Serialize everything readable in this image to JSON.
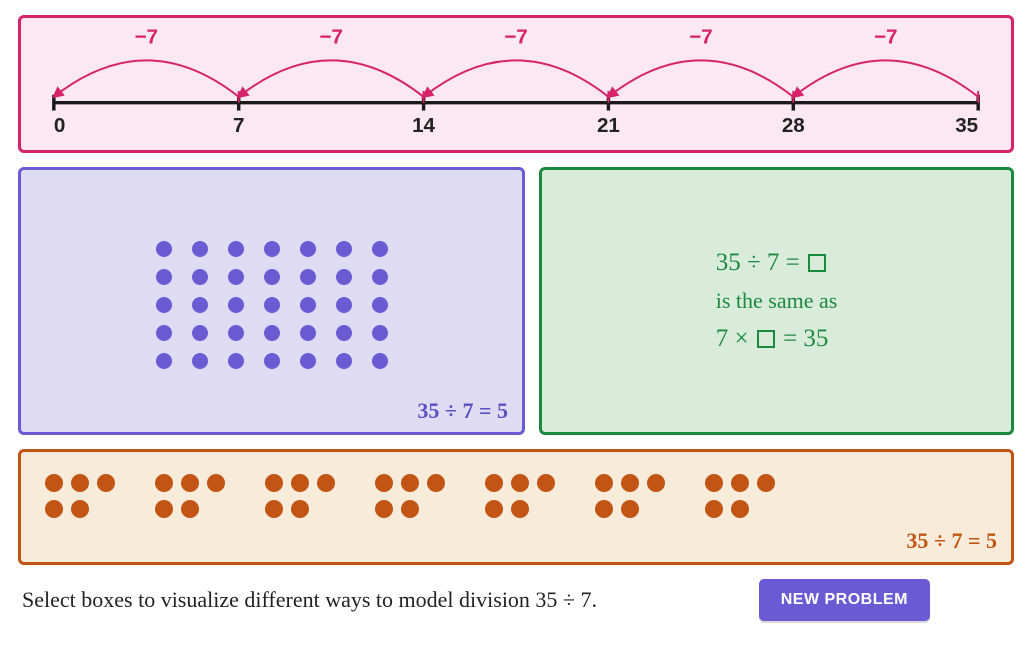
{
  "problem": {
    "dividend": 35,
    "divisor": 7,
    "quotient": 5
  },
  "numberline": {
    "type": "number-line",
    "border_color": "#d6236a",
    "background_color": "#fce8f0",
    "axis_color": "#1a1a1a",
    "axis_stroke_width": 3.5,
    "tick_values": [
      0,
      7,
      14,
      21,
      28,
      35
    ],
    "tick_label_color": "#222222",
    "hops": [
      {
        "from": 7,
        "to": 0,
        "label": "−7"
      },
      {
        "from": 14,
        "to": 7,
        "label": "−7"
      },
      {
        "from": 21,
        "to": 14,
        "label": "−7"
      },
      {
        "from": 28,
        "to": 21,
        "label": "−7"
      },
      {
        "from": 35,
        "to": 28,
        "label": "−7"
      }
    ],
    "hop_color": "#d6236a",
    "hop_stroke_width": 2,
    "hop_label_color": "#d6236a"
  },
  "array": {
    "type": "dot-array",
    "border_color": "#6a5bd4",
    "background_color": "#dedbf2",
    "rows": 5,
    "cols": 7,
    "dot_color": "#6a5bd4",
    "dot_radius": 8,
    "caption": "35 ÷ 7 = 5",
    "caption_color": "#5b4fc2"
  },
  "equation": {
    "type": "equation",
    "border_color": "#1b8a3e",
    "background_color": "#d9ecdc",
    "text_color": "#1b8a3e",
    "line1_pre": "35 ÷ 7 = ",
    "line2": "is the same as",
    "line3_pre": "7 × ",
    "line3_post": " = 35"
  },
  "groups": {
    "type": "equal-groups",
    "border_color": "#c25513",
    "background_color": "#f9ebda",
    "dot_color": "#c25513",
    "num_groups": 7,
    "group_rows": [
      3,
      2
    ],
    "caption": "35 ÷ 7 = 5",
    "caption_color": "#c25513"
  },
  "footer": {
    "instruction": "Select boxes to visualize different ways to model division 35 ÷ 7.",
    "button_label": "NEW PROBLEM",
    "button_bg": "#6a5bd4",
    "button_fg": "#ffffff"
  }
}
